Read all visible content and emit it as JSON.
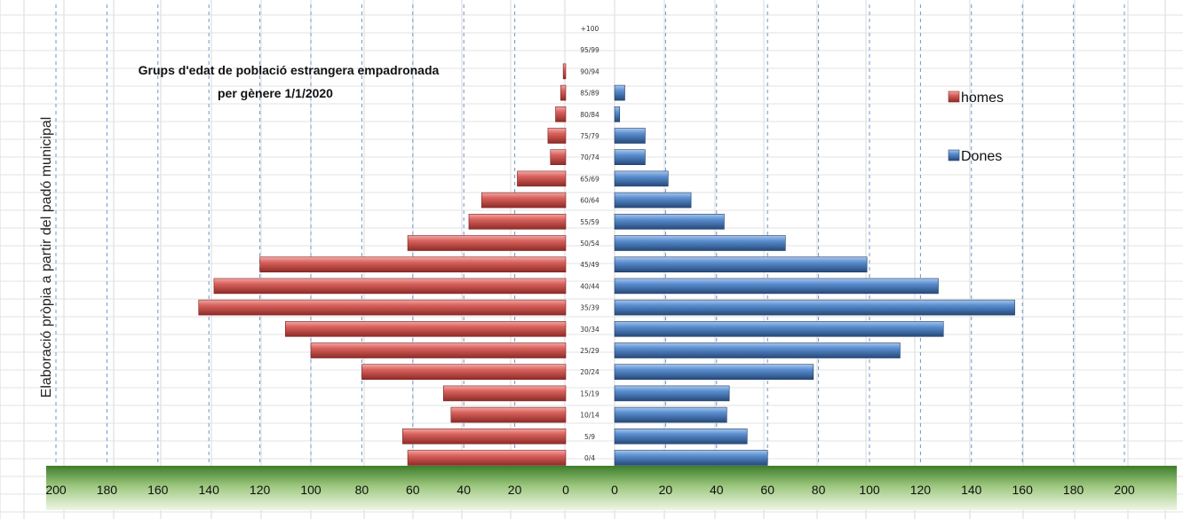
{
  "chart_data": {
    "type": "bar",
    "orientation": "horizontal-population-pyramid",
    "title_lines": [
      "Grups d'edat de població estrangera empadronada",
      "per gènere 1/1/2020"
    ],
    "ylabel": "Elaboració pròpia a partir del padó municipal",
    "categories": [
      "0/4",
      "5/9",
      "10/14",
      "15/19",
      "20/24",
      "25/29",
      "30/34",
      "35/39",
      "40/44",
      "45/49",
      "50/54",
      "55/59",
      "60/64",
      "65/69",
      "70/74",
      "75/79",
      "80/84",
      "85/89",
      "90/94",
      "95/99",
      "+100"
    ],
    "series": [
      {
        "name": "homes",
        "color": "#c0504d",
        "values": [
          62,
          64,
          45,
          48,
          80,
          100,
          110,
          144,
          138,
          120,
          62,
          38,
          33,
          19,
          6,
          7,
          4,
          2,
          1,
          0,
          0
        ]
      },
      {
        "name": "Dones",
        "color": "#4f81bd",
        "values": [
          60,
          52,
          44,
          45,
          78,
          112,
          129,
          157,
          127,
          99,
          67,
          43,
          30,
          21,
          12,
          12,
          2,
          4,
          0,
          0,
          0
        ]
      }
    ],
    "xlim": [
      0,
      200
    ],
    "x_ticks": [
      "200",
      "180",
      "160",
      "140",
      "120",
      "100",
      "80",
      "60",
      "40",
      "20",
      "0",
      "0",
      "20",
      "40",
      "60",
      "80",
      "100",
      "120",
      "140",
      "160",
      "180",
      "200"
    ],
    "grid": true,
    "legend_position": "right"
  }
}
